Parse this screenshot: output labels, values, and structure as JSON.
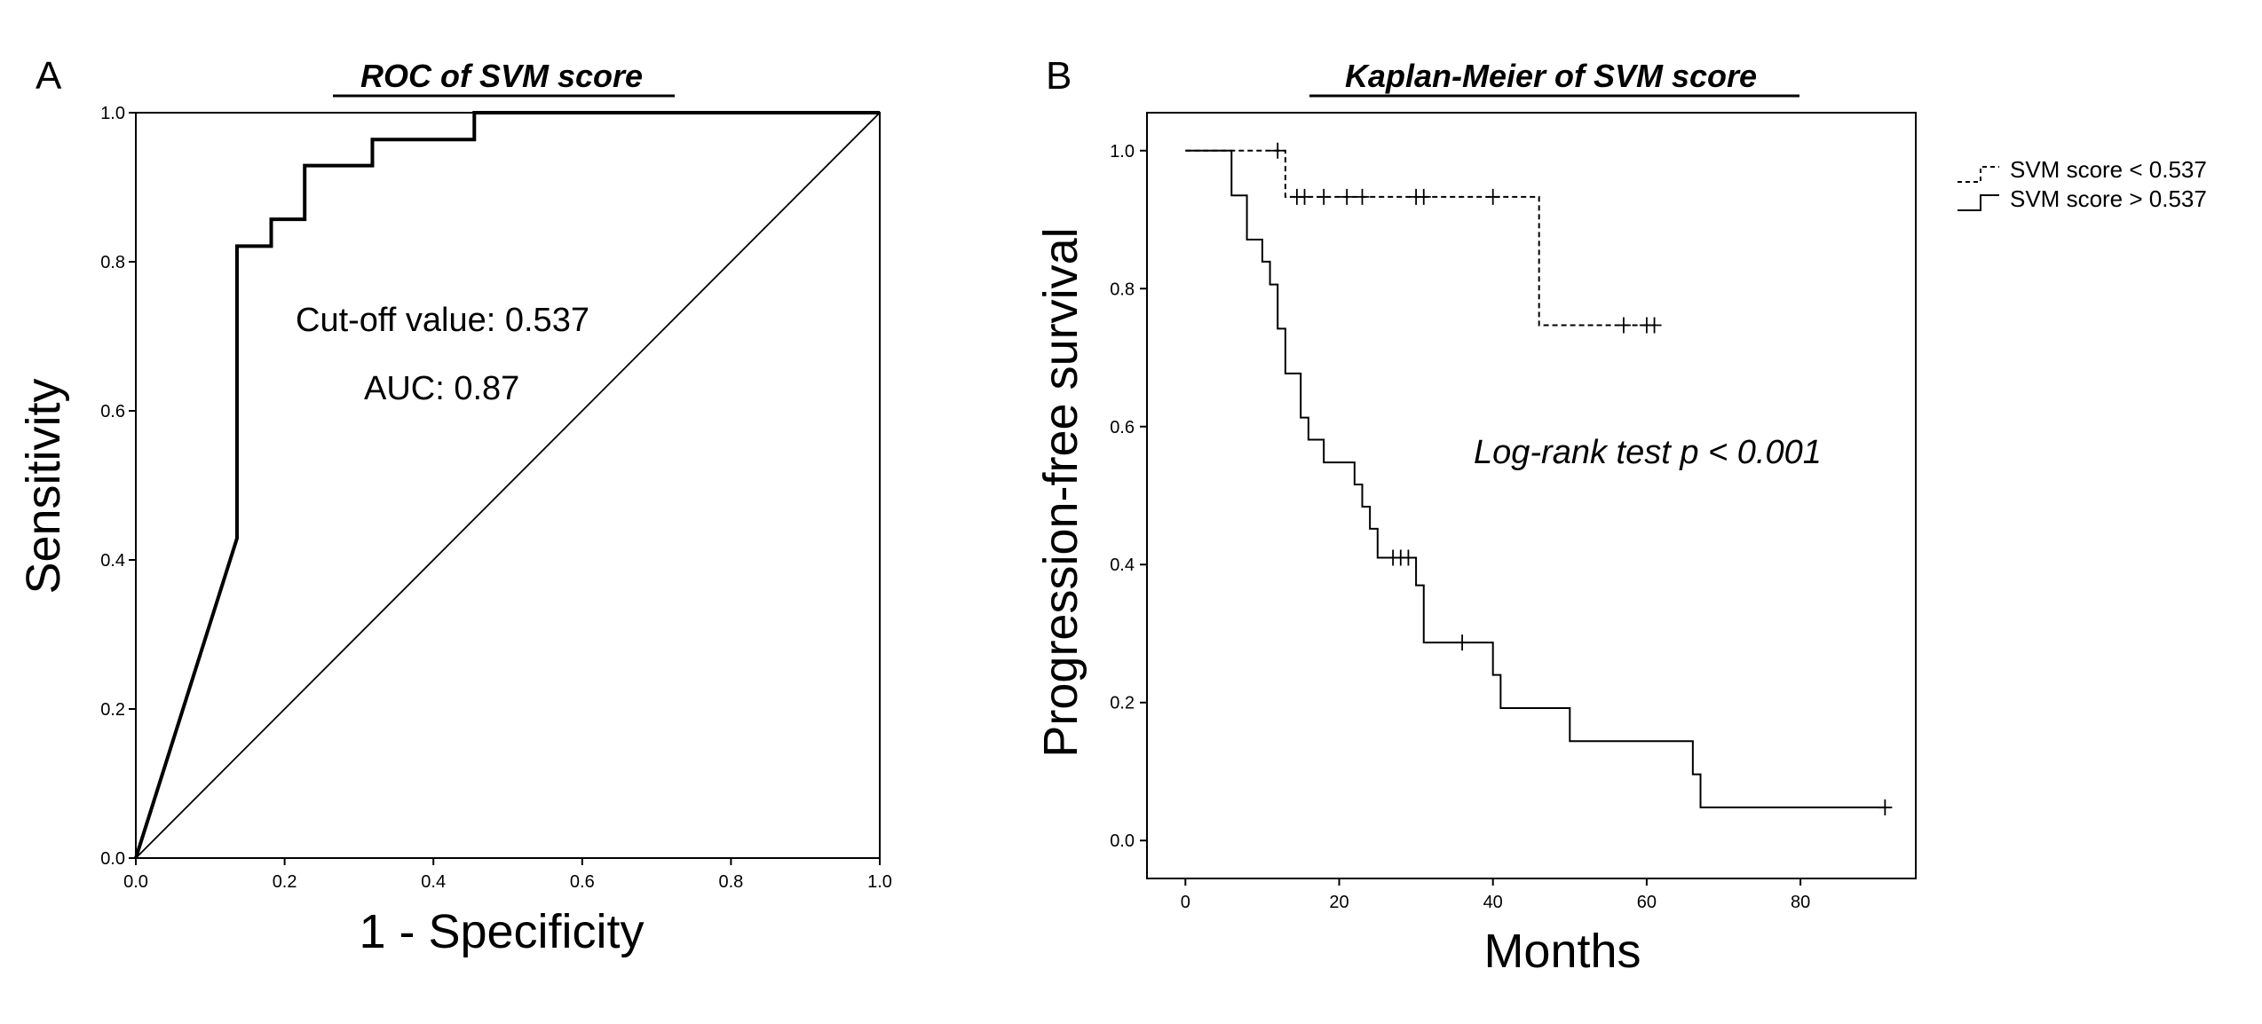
{
  "chart_data": [
    {
      "type": "line",
      "panel_label": "A",
      "title": "ROC of SVM score",
      "xlabel": "1 - Specificity",
      "ylabel": "Sensitivity",
      "xlim": [
        0,
        1
      ],
      "ylim": [
        0,
        1
      ],
      "xticks": [
        "0.0",
        "0.2",
        "0.4",
        "0.6",
        "0.8",
        "1.0"
      ],
      "yticks": [
        "0.0",
        "0.2",
        "0.4",
        "0.6",
        "0.8",
        "1.0"
      ],
      "annotations": [
        "Cut-off value: 0.537",
        "AUC: 0.87"
      ],
      "series": [
        {
          "name": "ROC curve",
          "x": [
            0.0,
            0.136,
            0.136,
            0.182,
            0.182,
            0.227,
            0.227,
            0.318,
            0.318,
            0.455,
            0.455,
            1.0
          ],
          "y": [
            0.0,
            0.429,
            0.821,
            0.821,
            0.857,
            0.857,
            0.929,
            0.929,
            0.964,
            0.964,
            1.0,
            1.0
          ]
        },
        {
          "name": "Reference line",
          "x": [
            0,
            1
          ],
          "y": [
            0,
            1
          ]
        }
      ]
    },
    {
      "type": "line",
      "panel_label": "B",
      "title": "Kaplan-Meier of SVM score",
      "xlabel": "Months",
      "ylabel": "Progression-free survival",
      "xlim": [
        -5,
        95
      ],
      "ylim": [
        -0.055,
        1.055
      ],
      "xticks": [
        "0",
        "20",
        "40",
        "60",
        "80"
      ],
      "yticks": [
        "0.0",
        "0.2",
        "0.4",
        "0.6",
        "0.8",
        "1.0"
      ],
      "annotations": [
        "Log-rank test p < 0.001"
      ],
      "legend": [
        "SVM score < 0.537",
        "SVM score > 0.537"
      ],
      "legend_position": "outside-top-right",
      "series": [
        {
          "name": "SVM score < 0.537",
          "style": "dashed",
          "steps": [
            [
              0,
              1.0
            ],
            [
              13,
              1.0
            ],
            [
              13,
              0.933
            ],
            [
              46,
              0.933
            ],
            [
              46,
              0.747
            ],
            [
              61,
              0.747
            ]
          ],
          "censored": [
            [
              12,
              1.0
            ],
            [
              14.5,
              0.933
            ],
            [
              15.5,
              0.933
            ],
            [
              18,
              0.933
            ],
            [
              21,
              0.933
            ],
            [
              23,
              0.933
            ],
            [
              30,
              0.933
            ],
            [
              31,
              0.933
            ],
            [
              40,
              0.933
            ],
            [
              57,
              0.747
            ],
            [
              60,
              0.747
            ],
            [
              61,
              0.747
            ]
          ]
        },
        {
          "name": "SVM score > 0.537",
          "style": "solid",
          "steps": [
            [
              0,
              1.0
            ],
            [
              6,
              1.0
            ],
            [
              6,
              0.935
            ],
            [
              8,
              0.935
            ],
            [
              8,
              0.871
            ],
            [
              10,
              0.871
            ],
            [
              10,
              0.839
            ],
            [
              11,
              0.839
            ],
            [
              11,
              0.806
            ],
            [
              12,
              0.806
            ],
            [
              12,
              0.742
            ],
            [
              13,
              0.742
            ],
            [
              13,
              0.677
            ],
            [
              15,
              0.677
            ],
            [
              15,
              0.613
            ],
            [
              16,
              0.613
            ],
            [
              16,
              0.581
            ],
            [
              18,
              0.581
            ],
            [
              18,
              0.548
            ],
            [
              22,
              0.548
            ],
            [
              22,
              0.516
            ],
            [
              23,
              0.516
            ],
            [
              23,
              0.484
            ],
            [
              24,
              0.484
            ],
            [
              24,
              0.452
            ],
            [
              25,
              0.452
            ],
            [
              25,
              0.41
            ],
            [
              30,
              0.41
            ],
            [
              30,
              0.37
            ],
            [
              31,
              0.37
            ],
            [
              31,
              0.287
            ],
            [
              40,
              0.287
            ],
            [
              40,
              0.24
            ],
            [
              41,
              0.24
            ],
            [
              41,
              0.192
            ],
            [
              50,
              0.192
            ],
            [
              50,
              0.144
            ],
            [
              66,
              0.144
            ],
            [
              66,
              0.096
            ],
            [
              67,
              0.096
            ],
            [
              67,
              0.048
            ],
            [
              91,
              0.048
            ]
          ],
          "censored": [
            [
              27,
              0.41
            ],
            [
              28,
              0.41
            ],
            [
              29,
              0.41
            ],
            [
              36,
              0.287
            ],
            [
              91,
              0.048
            ]
          ]
        }
      ]
    }
  ]
}
